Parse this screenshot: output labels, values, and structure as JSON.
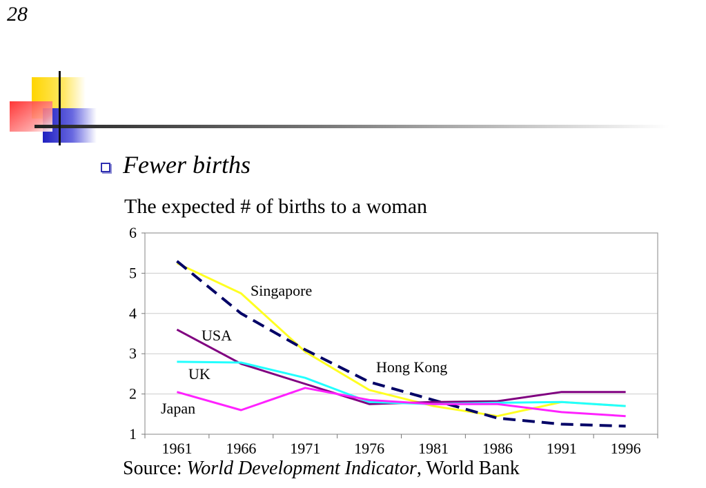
{
  "slide_number": "28",
  "heading": "Fewer births",
  "subtitle": "The expected # of births to a woman",
  "source": {
    "prefix": "Source: ",
    "title": "World Development Indicator",
    "suffix": ", World Bank"
  },
  "colors": {
    "Singapore": "#ffff22",
    "Hong Kong": "#000066",
    "USA": "#800080",
    "UK": "#22ffff",
    "Japan": "#ff22ff"
  },
  "chart_data": {
    "type": "line",
    "categories": [
      "1961",
      "1966",
      "1971",
      "1976",
      "1981",
      "1986",
      "1991",
      "1996"
    ],
    "ylim": [
      1,
      6
    ],
    "yticks": [
      1,
      2,
      3,
      4,
      5,
      6
    ],
    "grid": true,
    "series": [
      {
        "name": "Singapore",
        "label": "Singapore",
        "values": [
          5.25,
          4.5,
          3.05,
          2.1,
          1.7,
          1.45,
          1.8,
          1.7
        ],
        "dashed": false
      },
      {
        "name": "Hong Kong",
        "label": "Hong Kong",
        "values": [
          5.3,
          4.0,
          3.1,
          2.3,
          1.85,
          1.4,
          1.25,
          1.2
        ],
        "dashed": true
      },
      {
        "name": "USA",
        "label": "USA",
        "values": [
          3.6,
          2.75,
          2.25,
          1.75,
          1.8,
          1.82,
          2.05,
          2.05
        ],
        "dashed": false
      },
      {
        "name": "UK",
        "label": "UK",
        "values": [
          2.8,
          2.78,
          2.4,
          1.8,
          1.75,
          1.78,
          1.8,
          1.7
        ],
        "dashed": false
      },
      {
        "name": "Japan",
        "label": "Japan",
        "values": [
          2.05,
          1.6,
          2.15,
          1.85,
          1.75,
          1.75,
          1.55,
          1.45
        ],
        "dashed": false
      }
    ]
  }
}
